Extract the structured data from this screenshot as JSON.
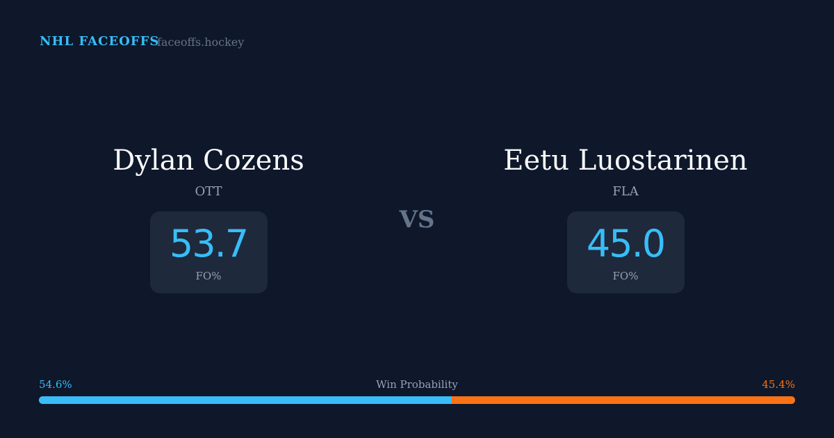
{
  "header": {
    "brand": "NHL FACEOFFS",
    "site": "faceoffs.hockey"
  },
  "players": [
    {
      "name": "Dylan Cozens",
      "team": "OTT",
      "value": "53.7",
      "stat_label": "FO%"
    },
    {
      "name": "Eetu Luostarinen",
      "team": "FLA",
      "value": "45.0",
      "stat_label": "FO%"
    }
  ],
  "vs": "VS",
  "win_probability": {
    "label": "Win Probability",
    "left": "54.6%",
    "right": "45.4%",
    "left_fraction": 0.546,
    "left_color": "#38bdf8",
    "right_color": "#f97316"
  }
}
